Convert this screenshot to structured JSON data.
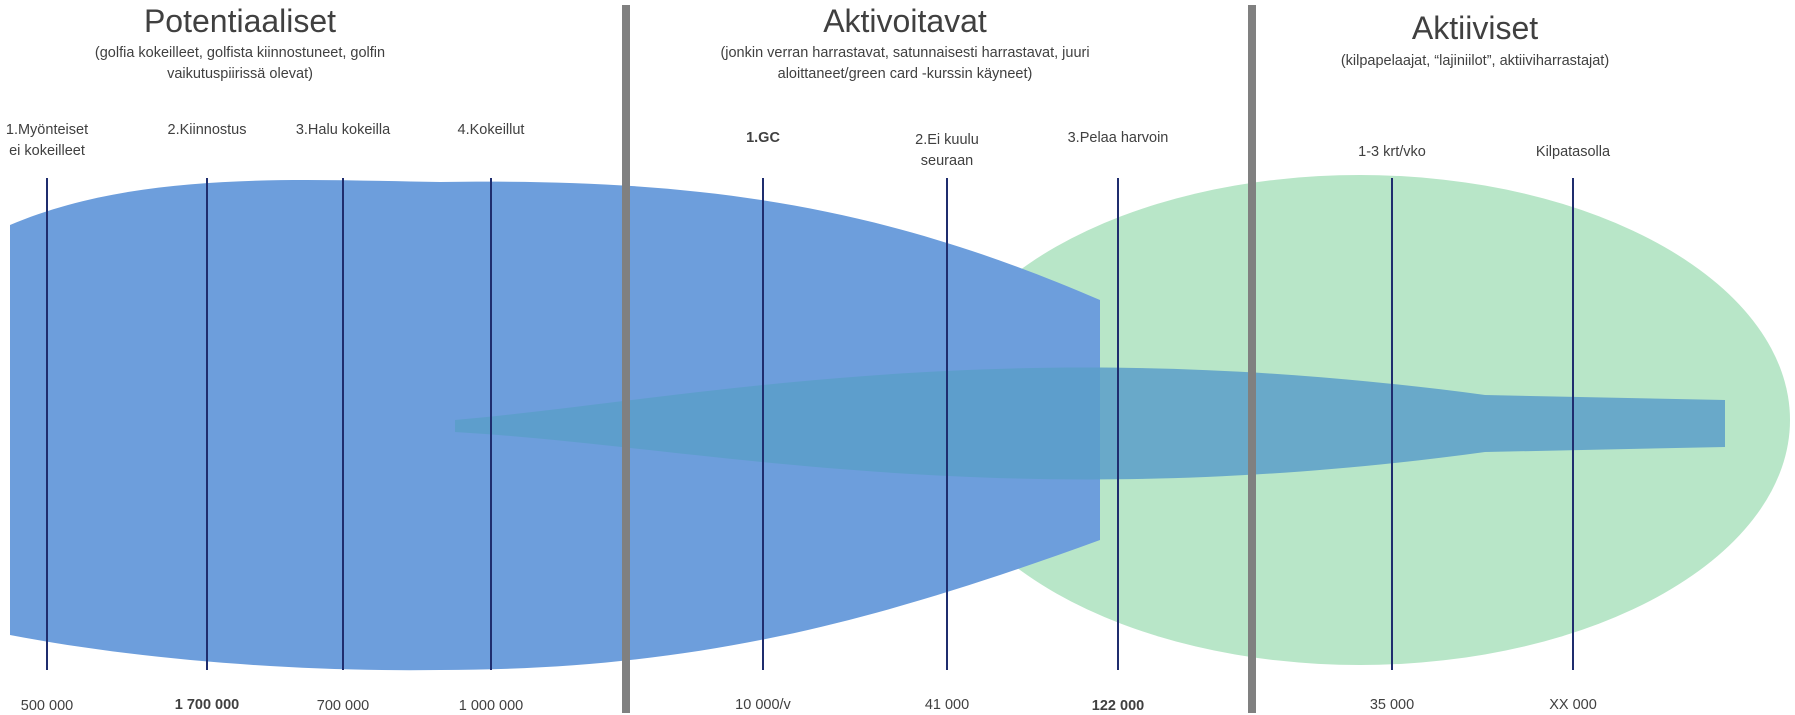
{
  "sections": [
    {
      "title": "Potentiaaliset",
      "subtitle_lines": [
        "(golfia kokeilleet, golfista kiinnostuneet, golfin",
        "vaikutuspiirissä olevat)"
      ]
    },
    {
      "title": "Aktivoitavat",
      "subtitle_lines": [
        "(jonkin verran harrastavat, satunnaisesti harrastavat, juuri",
        "aloittaneet/green card -kurssin käyneet)"
      ]
    },
    {
      "title": "Aktiiviset",
      "subtitle_lines": [
        "(kilpapelaajat, “lajiniilot”, aktiiviharrastajat)"
      ]
    }
  ],
  "stages": [
    {
      "label_lines": [
        "1.Myönteiset",
        "ei kokeilleet"
      ],
      "count": "500 000",
      "count_bold": false,
      "label_bold": false
    },
    {
      "label_lines": [
        "2.Kiinnostus"
      ],
      "count": "1 700 000",
      "count_bold": true,
      "label_bold": false
    },
    {
      "label_lines": [
        "3.Halu kokeilla"
      ],
      "count": "700 000",
      "count_bold": false,
      "label_bold": false
    },
    {
      "label_lines": [
        "4.Kokeillut"
      ],
      "count": "1 000 000",
      "count_bold": false,
      "label_bold": false
    },
    {
      "label_lines": [
        "1.GC"
      ],
      "count": "10 000/v",
      "count_bold": false,
      "label_bold": true
    },
    {
      "label_lines": [
        "2.Ei kuulu",
        "seuraan"
      ],
      "count": "41 000",
      "count_bold": false,
      "label_bold": false
    },
    {
      "label_lines": [
        "3.Pelaa harvoin"
      ],
      "count": "122 000",
      "count_bold": true,
      "label_bold": false
    },
    {
      "label_lines": [
        "1-3 krt/vko"
      ],
      "count": "35 000",
      "count_bold": false,
      "label_bold": false
    },
    {
      "label_lines": [
        "Kilpatasolla"
      ],
      "count": "XX 000",
      "count_bold": false,
      "label_bold": false
    }
  ],
  "colors": {
    "blue_shape": "#6d9edc",
    "green_shape": "#b8e6c8",
    "overlap_wedge": "#5a9ec9",
    "stage_line": "#1f2d6e",
    "divider": "#808080",
    "text": "#404040"
  }
}
